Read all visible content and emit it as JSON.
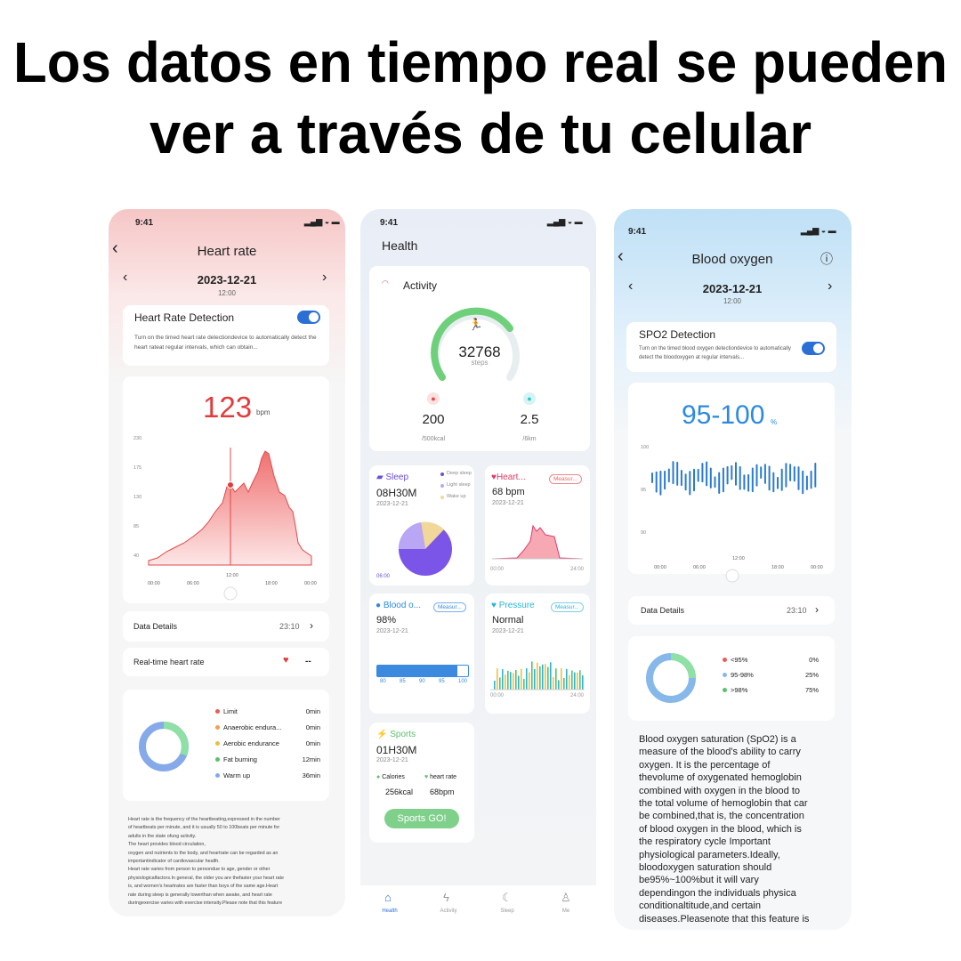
{
  "header": {
    "line1": "Los datos en tiempo real se pueden",
    "line2": "ver a través de tu celular"
  },
  "heart": {
    "status_time": "9:41",
    "title": "Heart rate",
    "date": "2023-12-21",
    "clock": "12:00",
    "detection": {
      "title": "Heart Rate Detection",
      "text": "Turn on the timed heart rate detectiondevice to automatically detect the heart rateat regular intervals, which can obtain..."
    },
    "reading": {
      "value": 123,
      "unit": "bpm"
    },
    "chart": {
      "yticks": [
        "230",
        "175",
        "130",
        "85",
        "40"
      ],
      "xticks": [
        "00:00",
        "06:00",
        "12:00",
        "18:00",
        "00:00"
      ]
    },
    "details": {
      "label": "Data Details",
      "time": "23:10"
    },
    "realtime": {
      "label": "Real-time heart rate",
      "value": "--"
    },
    "zones": [
      {
        "name": "Limit",
        "value": "0min"
      },
      {
        "name": "Anaerobic endura...",
        "value": "0min"
      },
      {
        "name": "Aerobic endurance",
        "value": "0min"
      },
      {
        "name": "Fat burning",
        "value": "12min"
      },
      {
        "name": "Warm up",
        "value": "36min"
      }
    ],
    "description": [
      "Heart rate is the frequency of the heartbeating,expressed in the number",
      "of heartbeats per minute, and it is usually 50 to 100beats per minute for",
      "adults in the state ofung activity.",
      "The heart provides blood circulation,",
      "oxygen and nutrients to the body, and heartrate can be regarded as an",
      "importantindicator of cardiovascular health.",
      "Heart rate varies from person to persondue to age, gender or other",
      "physiologicalfactors.In general, the older you are thefaster your heart rate",
      "is, and women's heartrates are faster than boys of the same age.Heart",
      "rate during sleep is generally lowerthan when awake, and heart rate",
      "duringexercise varies with exercise intensity.Please note that this feature"
    ]
  },
  "health": {
    "status_time": "9:41",
    "title": "Health",
    "activity": {
      "title": "Activity",
      "steps": 32768,
      "steps_unit": "steps",
      "calories": 200,
      "calories_goal": "/500kcal",
      "distance": 2.5,
      "distance_goal": "/6km"
    },
    "sleep": {
      "title": "Sleep",
      "duration": "08H30M",
      "date": "2023-12-21",
      "legend": [
        "Deep sleep",
        "Light sleep",
        "Wake up"
      ],
      "start": "06:00"
    },
    "heart_card": {
      "title": "Heart...",
      "button": "Measur...",
      "value": "68 bpm",
      "date": "2023-12-21",
      "x_start": "00:00",
      "x_end": "24:00"
    },
    "blood": {
      "title": "Blood o...",
      "button": "Measur...",
      "value": "98%",
      "date": "2023-12-21",
      "scale": [
        "80",
        "85",
        "90",
        "95",
        "100"
      ]
    },
    "pressure": {
      "title": "Pressure",
      "button": "Measur...",
      "value": "Normal",
      "date": "2023-12-21",
      "x_start": "00:00",
      "x_end": "24:00"
    },
    "sports": {
      "title": "Sports",
      "duration": "01H30M",
      "date": "2023-12-21",
      "calories_label": "Calories",
      "heart_label": "heart rate",
      "calories": "256kcal",
      "heart": "68bpm",
      "button": "Sports GO!"
    },
    "nav": [
      "Health",
      "Activity",
      "Sleep",
      "Me"
    ]
  },
  "oxygen": {
    "status_time": "9:41",
    "title": "Blood oxygen",
    "date": "2023-12-21",
    "clock": "12:00",
    "detection": {
      "title": "SPO2 Detection",
      "text": "Turn on the timed blood oxygen detectiondevice to automatically detect the bloodoxygen at regular intervals..."
    },
    "reading": {
      "value": "95-100",
      "unit": "%"
    },
    "chart": {
      "yticks": [
        "100",
        "95",
        "90"
      ],
      "xticks": [
        "00:00",
        "06:00",
        "12:00",
        "18:00",
        "00:00"
      ]
    },
    "details": {
      "label": "Data Details",
      "time": "23:10"
    },
    "legend": [
      {
        "range": "<95%",
        "share": "0%"
      },
      {
        "range": "95-98%",
        "share": "25%"
      },
      {
        "range": ">98%",
        "share": "75%"
      }
    ],
    "description": [
      "Blood oxygen saturation (SpO2) is a",
      "measure of the blood's ability to carry",
      "oxygen. It is the percentage of",
      "thevolume of oxygenated hemoglobin",
      "combined with oxygen in the blood to",
      "the total volume of hemoglobin that car",
      "be combined,that is, the concentration",
      "of blood oxygen in the blood, which is",
      "the respiratory cycle Important",
      "physiological parameters.Ideally,",
      "bloodoxygen saturation should",
      "be95%~100%but it will vary",
      "dependingon the individuals physica",
      "conditionaltitude,and certain",
      "diseases.Pleasenote that this feature is"
    ]
  }
}
